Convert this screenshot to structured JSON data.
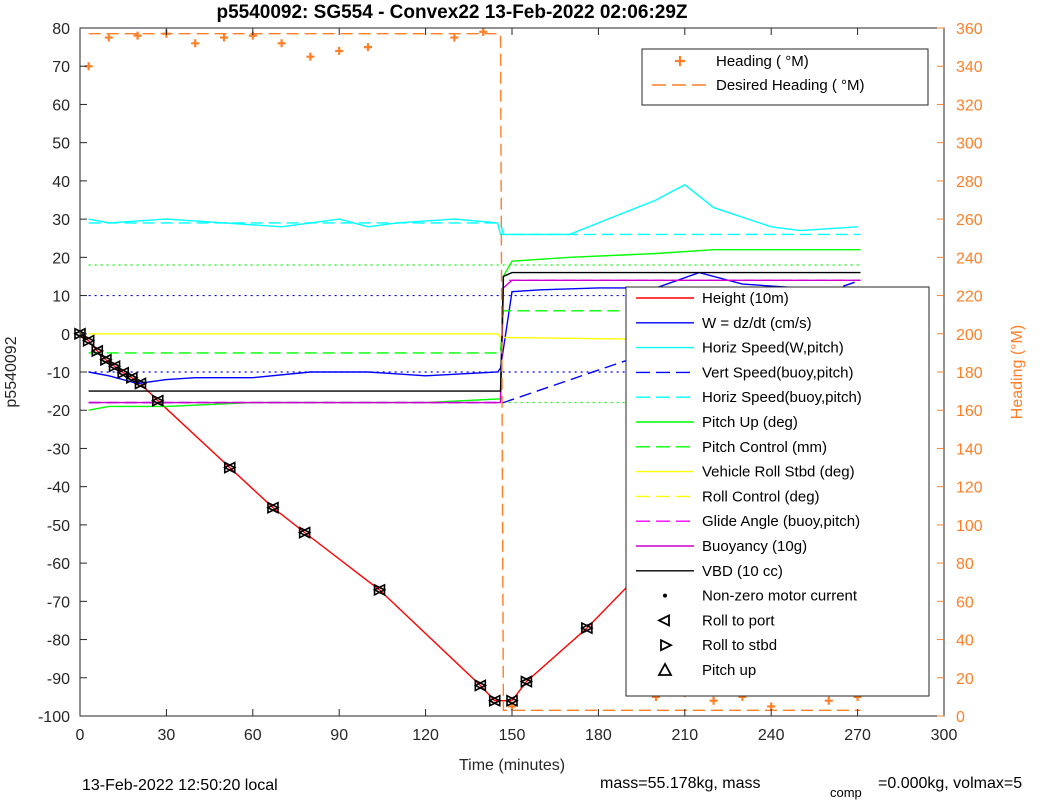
{
  "chart_data": {
    "type": "line",
    "title": "p5540092: SG554 - Convex22 13-Feb-2022 02:06:29Z",
    "xlabel": "Time (minutes)",
    "ylabel": "p5540092",
    "y2label": "Heading (°M)",
    "xlim": [
      0,
      300
    ],
    "ylim": [
      -100,
      80
    ],
    "y2lim": [
      0,
      360
    ],
    "xticks": [
      "0",
      "30",
      "60",
      "90",
      "120",
      "150",
      "180",
      "210",
      "240",
      "270",
      "300"
    ],
    "yticks": [
      "-100",
      "-90",
      "-80",
      "-70",
      "-60",
      "-50",
      "-40",
      "-30",
      "-20",
      "-10",
      "0",
      "10",
      "20",
      "30",
      "40",
      "50",
      "60",
      "70",
      "80"
    ],
    "y2ticks": [
      "0",
      "20",
      "40",
      "60",
      "80",
      "100",
      "120",
      "140",
      "160",
      "180",
      "200",
      "220",
      "240",
      "260",
      "280",
      "300",
      "320",
      "340",
      "360"
    ],
    "colors": {
      "height": "#ff0000",
      "w": "#0000ff",
      "horiz": "#00ffff",
      "pitch": "#00ff00",
      "roll": "#ffff00",
      "glide": "#ff00ff",
      "buoy": "#cc00cc",
      "vbd": "#000000",
      "heading": "#ff7f27"
    },
    "heading_legend": [
      {
        "label": "Heading (  °M)",
        "style": "marker",
        "color": "#ff7f27"
      },
      {
        "label": "Desired Heading (    °M)",
        "style": "dash",
        "color": "#ff7f27"
      }
    ],
    "legend": [
      {
        "label": "Height (10m)",
        "style": "solid",
        "color": "#ff0000"
      },
      {
        "label": "W = dz/dt (cm/s)",
        "style": "solid",
        "color": "#0000ff"
      },
      {
        "label": "Horiz Speed(W,pitch)",
        "style": "solid",
        "color": "#00ffff"
      },
      {
        "label": "Vert Speed(buoy,pitch)",
        "style": "dash",
        "color": "#0000ff"
      },
      {
        "label": "Horiz Speed(buoy,pitch)",
        "style": "dash",
        "color": "#00ffff"
      },
      {
        "label": "Pitch Up (deg)",
        "style": "solid",
        "color": "#00ff00"
      },
      {
        "label": "Pitch Control (mm)",
        "style": "dash",
        "color": "#00ff00"
      },
      {
        "label": "Vehicle Roll Stbd (deg)",
        "style": "solid",
        "color": "#ffff00"
      },
      {
        "label": "Roll Control (deg)",
        "style": "dash",
        "color": "#ffff00"
      },
      {
        "label": "Glide Angle (buoy,pitch)",
        "style": "dash",
        "color": "#ff00ff"
      },
      {
        "label": "Buoyancy (10g)",
        "style": "solid",
        "color": "#cc00cc"
      },
      {
        "label": "VBD (10 cc)",
        "style": "solid",
        "color": "#000000"
      },
      {
        "label": "Non-zero motor current",
        "style": "dot",
        "color": "#000000"
      },
      {
        "label": "Roll to port",
        "style": "tri-left",
        "color": "#000000"
      },
      {
        "label": "Roll to stbd",
        "style": "tri-right",
        "color": "#000000"
      },
      {
        "label": "Pitch up",
        "style": "tri-up",
        "color": "#000000"
      }
    ],
    "series": [
      {
        "name": "Height (10m)",
        "x": [
          0,
          3,
          6,
          9,
          12,
          15,
          18,
          21,
          27,
          52,
          67,
          78,
          104,
          139,
          144,
          150,
          155,
          176,
          198,
          206,
          213,
          223,
          235,
          240,
          262,
          271
        ],
        "y": [
          0,
          -1.8,
          -4.5,
          -6.8,
          -8.5,
          -10.2,
          -11.5,
          -13,
          -17.5,
          -35,
          -45.5,
          -52,
          -67,
          -92,
          -96,
          -96,
          -91,
          -77,
          -60,
          -50.5,
          -44,
          -35,
          -25,
          -21,
          -5.5,
          0
        ]
      },
      {
        "name": "W = dz/dt (cm/s)",
        "x": [
          3,
          10,
          20,
          30,
          40,
          60,
          80,
          100,
          120,
          145,
          146,
          150,
          160,
          180,
          200,
          215,
          230,
          250,
          270
        ],
        "y": [
          -10,
          -11,
          -13,
          -12,
          -11.5,
          -11.5,
          -10,
          -10,
          -11,
          -10,
          -9,
          11,
          11.5,
          12,
          12,
          16,
          13,
          12,
          12
        ]
      },
      {
        "name": "Vert Speed(buoy,pitch)",
        "x": [
          3,
          146,
          147,
          271
        ],
        "y": [
          -18,
          -18,
          -18,
          14
        ]
      },
      {
        "name": "Horiz Speed(W,pitch)",
        "x": [
          3,
          10,
          30,
          50,
          70,
          90,
          100,
          110,
          130,
          145,
          146,
          150,
          170,
          180,
          200,
          210,
          220,
          240,
          250,
          270
        ],
        "y": [
          30,
          29,
          30,
          29,
          28,
          30,
          28,
          29,
          30,
          29,
          26,
          26,
          26,
          29,
          35,
          39,
          33,
          28,
          27,
          28
        ]
      },
      {
        "name": "Horiz Speed(buoy,pitch)",
        "x": [
          3,
          146,
          147,
          271
        ],
        "y": [
          29,
          29,
          26,
          26
        ]
      },
      {
        "name": "Pitch Up (deg)",
        "x": [
          3,
          10,
          30,
          60,
          90,
          120,
          146,
          147,
          150,
          170,
          200,
          220,
          250,
          271
        ],
        "y": [
          -20,
          -19,
          -19,
          -18,
          -18,
          -18,
          -17,
          15,
          19,
          20,
          21,
          22,
          22,
          22
        ]
      },
      {
        "name": "Pitch Control (mm)",
        "x": [
          3,
          146,
          147,
          271
        ],
        "y": [
          -5,
          -5,
          6,
          6
        ]
      },
      {
        "name": "Vehicle Roll Stbd (deg)",
        "x": [
          3,
          60,
          120,
          145,
          146,
          150,
          200,
          271
        ],
        "y": [
          0,
          0,
          0,
          0,
          -1,
          -1,
          -1.5,
          -1
        ]
      },
      {
        "name": "Glide Angle (buoy,pitch)",
        "x": [
          3,
          146,
          147,
          271
        ],
        "y": [
          -18,
          -18,
          14,
          14
        ]
      },
      {
        "name": "Buoyancy (10g)",
        "x": [
          3,
          146,
          147,
          150,
          271
        ],
        "y": [
          -18,
          -18,
          12,
          14,
          14
        ]
      },
      {
        "name": "VBD (10 cc)",
        "x": [
          3,
          146,
          147,
          150,
          271
        ],
        "y": [
          -15,
          -15,
          15,
          16,
          16
        ]
      },
      {
        "name": "Heading (  °M)",
        "x": [
          3,
          10,
          20,
          30,
          40,
          50,
          60,
          70,
          80,
          90,
          100,
          130,
          140,
          150,
          200,
          210,
          220,
          230,
          240,
          260,
          270
        ],
        "y": [
          340,
          355,
          356,
          357,
          352,
          355,
          356,
          352,
          345,
          348,
          350,
          355,
          358,
          5,
          10,
          12,
          8,
          10,
          5,
          8,
          10
        ]
      },
      {
        "name": "Desired Heading (    °M)",
        "x": [
          3,
          146,
          147,
          271
        ],
        "y": [
          357,
          357,
          3,
          3
        ]
      }
    ]
  },
  "footer": {
    "local_time": "13-Feb-2022 12:50:20 local",
    "mass_text": "mass=55.178kg, mass",
    "comp_sub": "comp",
    "vol_text": "=0.000kg, volmax=5"
  }
}
